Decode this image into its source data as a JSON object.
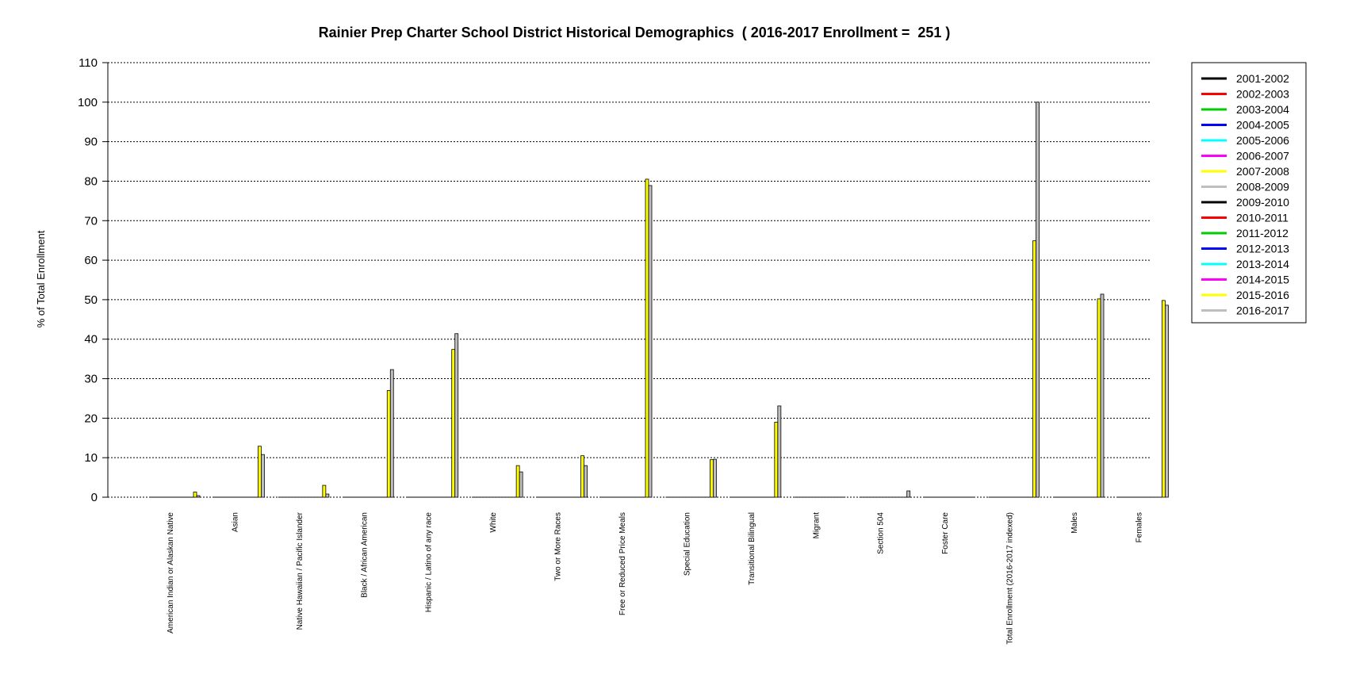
{
  "chart_data": {
    "type": "bar",
    "title": "Rainier Prep Charter School District Historical Demographics  ( 2016-2017 Enrollment =  251 )",
    "ylabel": "% of Total Enrollment",
    "xlabel": "",
    "ylim": [
      0,
      110
    ],
    "yticks": [
      0,
      10,
      20,
      30,
      40,
      50,
      60,
      70,
      80,
      90,
      100,
      110
    ],
    "grid": true,
    "legend_position": "right",
    "categories": [
      "American Indian or Alaskan Native",
      "Asian",
      "Native Hawaiian / Pacific Islander",
      "Black / African American",
      "Hispanic / Latino of any race",
      "White",
      "Two or More Races",
      "Free or Reduced Price Meals",
      "Special Education",
      "Transitional Bilingual",
      "Migrant",
      "Section 504",
      "Foster Care",
      "Total Enrollment (2016-2017 indexed)",
      "Males",
      "Females"
    ],
    "series": [
      {
        "name": "2001-2002",
        "color": "#000000",
        "values": [
          0,
          0,
          0,
          0,
          0,
          0,
          0,
          0,
          0,
          0,
          0,
          0,
          0,
          0,
          0,
          0
        ]
      },
      {
        "name": "2002-2003",
        "color": "#ff0000",
        "values": [
          0,
          0,
          0,
          0,
          0,
          0,
          0,
          0,
          0,
          0,
          0,
          0,
          0,
          0,
          0,
          0
        ]
      },
      {
        "name": "2003-2004",
        "color": "#00cd00",
        "values": [
          0,
          0,
          0,
          0,
          0,
          0,
          0,
          0,
          0,
          0,
          0,
          0,
          0,
          0,
          0,
          0
        ]
      },
      {
        "name": "2004-2005",
        "color": "#0000ff",
        "values": [
          0,
          0,
          0,
          0,
          0,
          0,
          0,
          0,
          0,
          0,
          0,
          0,
          0,
          0,
          0,
          0
        ]
      },
      {
        "name": "2005-2006",
        "color": "#00ffff",
        "values": [
          0,
          0,
          0,
          0,
          0,
          0,
          0,
          0,
          0,
          0,
          0,
          0,
          0,
          0,
          0,
          0
        ]
      },
      {
        "name": "2006-2007",
        "color": "#ff00ff",
        "values": [
          0,
          0,
          0,
          0,
          0,
          0,
          0,
          0,
          0,
          0,
          0,
          0,
          0,
          0,
          0,
          0
        ]
      },
      {
        "name": "2007-2008",
        "color": "#ffff00",
        "values": [
          0,
          0,
          0,
          0,
          0,
          0,
          0,
          0,
          0,
          0,
          0,
          0,
          0,
          0,
          0,
          0
        ]
      },
      {
        "name": "2008-2009",
        "color": "#bebebe",
        "values": [
          0,
          0,
          0,
          0,
          0,
          0,
          0,
          0,
          0,
          0,
          0,
          0,
          0,
          0,
          0,
          0
        ]
      },
      {
        "name": "2009-2010",
        "color": "#000000",
        "values": [
          0,
          0,
          0,
          0,
          0,
          0,
          0,
          0,
          0,
          0,
          0,
          0,
          0,
          0,
          0,
          0
        ]
      },
      {
        "name": "2010-2011",
        "color": "#ff0000",
        "values": [
          0,
          0,
          0,
          0,
          0,
          0,
          0,
          0,
          0,
          0,
          0,
          0,
          0,
          0,
          0,
          0
        ]
      },
      {
        "name": "2011-2012",
        "color": "#00cd00",
        "values": [
          0,
          0,
          0,
          0,
          0,
          0,
          0,
          0,
          0,
          0,
          0,
          0,
          0,
          0,
          0,
          0
        ]
      },
      {
        "name": "2012-2013",
        "color": "#0000ff",
        "values": [
          0,
          0,
          0,
          0,
          0,
          0,
          0,
          0,
          0,
          0,
          0,
          0,
          0,
          0,
          0,
          0
        ]
      },
      {
        "name": "2013-2014",
        "color": "#00ffff",
        "values": [
          0,
          0,
          0,
          0,
          0,
          0,
          0,
          0,
          0,
          0,
          0,
          0,
          0,
          0,
          0,
          0
        ]
      },
      {
        "name": "2014-2015",
        "color": "#ff00ff",
        "values": [
          0,
          0,
          0,
          0,
          0,
          0,
          0,
          0,
          0,
          0,
          0,
          0,
          0,
          0,
          0,
          0
        ]
      },
      {
        "name": "2015-2016",
        "color": "#ffff00",
        "values": [
          1.3,
          12.9,
          3.0,
          27.0,
          37.4,
          8.0,
          10.5,
          80.5,
          9.5,
          19.0,
          0,
          0,
          0,
          64.9,
          50.2,
          49.8
        ]
      },
      {
        "name": "2016-2017",
        "color": "#bebebe",
        "values": [
          0.4,
          10.8,
          0.8,
          32.3,
          41.4,
          6.4,
          8.0,
          78.9,
          9.6,
          23.1,
          0,
          1.6,
          0,
          100,
          51.4,
          48.6
        ]
      }
    ]
  }
}
